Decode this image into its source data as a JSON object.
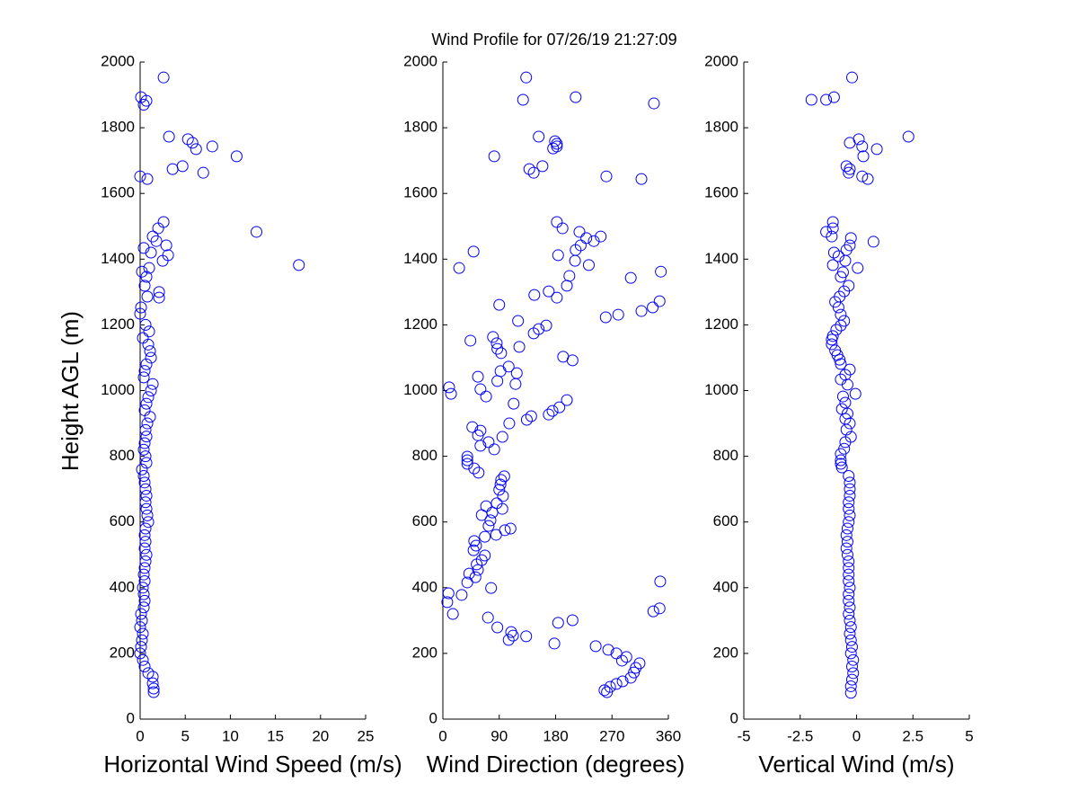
{
  "chart_data": [
    {
      "type": "scatter",
      "title": "Wind Profile for  07/26/19 21:27:09",
      "xlabel": "Horizontal Wind Speed (m/s)",
      "ylabel": "Height AGL (m)",
      "color": "#0000ff",
      "xlim": [
        0,
        25
      ],
      "xticks": [
        0,
        5,
        10,
        15,
        20,
        25
      ],
      "ylim": [
        0,
        2000
      ],
      "yticks": [
        0,
        200,
        400,
        600,
        800,
        1000,
        1200,
        1400,
        1600,
        1800,
        2000
      ],
      "x": [
        2.6,
        0.1,
        0.7,
        0.4,
        3.2,
        5.3,
        5.8,
        6.2,
        8.0,
        10.7,
        3.6,
        4.7,
        7.0,
        0,
        0.8,
        2.6,
        2.0,
        1.4,
        1.8,
        2.9,
        12.9,
        3.1,
        2.5,
        0.4,
        1.2,
        1.0,
        17.6,
        0.2,
        0.7,
        0.5,
        2.1,
        2.1,
        0.8,
        0.1,
        0.0,
        0.6,
        1.0,
        0.3,
        0.9,
        1.1,
        1.2,
        0.7,
        0.5,
        0.4,
        1.4,
        1.2,
        0.9,
        0.7,
        0.5,
        1.1,
        0.8,
        0.6,
        0.7,
        0.5,
        0.4,
        0.6,
        0.7,
        0.2,
        0.4,
        0.5,
        0.6,
        0.7,
        0.6,
        0.7,
        0.8,
        0.9,
        0.6,
        0.5,
        0.6,
        0.5,
        0.7,
        0.6,
        0.5,
        0.4,
        0.5,
        0.3,
        0.4,
        0.5,
        0.4,
        0.1,
        0.2,
        0.0,
        0.3,
        0.2,
        0.1,
        0.0,
        0.3,
        0.5,
        0.9,
        1.4,
        1.4,
        1.5,
        1.5
      ],
      "y": [
        1953,
        1893,
        1882,
        1870,
        1773,
        1765,
        1754,
        1735,
        1743,
        1713,
        1674,
        1683,
        1663,
        1652,
        1644,
        1513,
        1494,
        1469,
        1455,
        1442,
        1483,
        1412,
        1395,
        1434,
        1420,
        1373,
        1382,
        1362,
        1346,
        1319,
        1300,
        1283,
        1286,
        1253,
        1234,
        1200,
        1180,
        1160,
        1140,
        1120,
        1100,
        1080,
        1060,
        1040,
        1020,
        1000,
        980,
        960,
        940,
        920,
        900,
        880,
        860,
        840,
        820,
        800,
        780,
        760,
        740,
        720,
        700,
        680,
        660,
        640,
        620,
        600,
        580,
        560,
        540,
        520,
        500,
        480,
        460,
        440,
        420,
        400,
        380,
        360,
        340,
        320,
        300,
        280,
        260,
        240,
        220,
        200,
        180,
        160,
        140,
        129,
        109,
        93,
        82
      ]
    },
    {
      "type": "scatter",
      "xlabel": "Wind Direction (degrees)",
      "color": "#0000ff",
      "xlim": [
        0,
        360
      ],
      "xticks": [
        0,
        90,
        180,
        270,
        360
      ],
      "ylim": [
        0,
        2000
      ],
      "yticks": [
        0,
        200,
        400,
        600,
        800,
        1000,
        1200,
        1400,
        1600,
        1800,
        2000
      ],
      "x": [
        133,
        128,
        212,
        337,
        153,
        179,
        182,
        176,
        182,
        82,
        159,
        138,
        145,
        261,
        317,
        182,
        191,
        218,
        229,
        252,
        241,
        220,
        212,
        49,
        184,
        211,
        233,
        26,
        348,
        202,
        300,
        198,
        169,
        146,
        182,
        90,
        346,
        335,
        317,
        280,
        260,
        120,
        165,
        153,
        145,
        80,
        86,
        122,
        44,
        87,
        93,
        192,
        207,
        105,
        92,
        118,
        56,
        87,
        116,
        10,
        13,
        60,
        69,
        198,
        113,
        186,
        175,
        169,
        141,
        134,
        106,
        47,
        60,
        56,
        95,
        73,
        60,
        82,
        39,
        39,
        39,
        50,
        57,
        98,
        93,
        92,
        90,
        96,
        86,
        69,
        95,
        79,
        62,
        76,
        73,
        99,
        108,
        85,
        67,
        50,
        53,
        49,
        67,
        62,
        54,
        56,
        42,
        52,
        39,
        77,
        30,
        9,
        7,
        347,
        346,
        336,
        16,
        72,
        207,
        184,
        87,
        109,
        112,
        133,
        105,
        178,
        244,
        264,
        277,
        293,
        286,
        314,
        308,
        305,
        300,
        287,
        277,
        267,
        258,
        262
      ],
      "y": [
        1953,
        1885,
        1893,
        1874,
        1773,
        1759,
        1751,
        1737,
        1743,
        1713,
        1683,
        1674,
        1663,
        1652,
        1644,
        1513,
        1494,
        1483,
        1464,
        1469,
        1455,
        1442,
        1428,
        1423,
        1412,
        1395,
        1382,
        1373,
        1362,
        1349,
        1343,
        1319,
        1302,
        1291,
        1283,
        1261,
        1272,
        1253,
        1242,
        1231,
        1223,
        1212,
        1198,
        1187,
        1174,
        1163,
        1144,
        1133,
        1152,
        1127,
        1114,
        1103,
        1092,
        1073,
        1059,
        1053,
        1042,
        1029,
        1020,
        1010,
        990,
        1004,
        982,
        971,
        960,
        949,
        938,
        927,
        922,
        911,
        900,
        889,
        878,
        864,
        859,
        843,
        832,
        821,
        799,
        788,
        777,
        763,
        750,
        739,
        728,
        714,
        698,
        679,
        657,
        648,
        640,
        629,
        621,
        605,
        588,
        575,
        580,
        561,
        555,
        542,
        528,
        514,
        498,
        484,
        471,
        454,
        443,
        432,
        416,
        399,
        378,
        383,
        356,
        419,
        337,
        328,
        320,
        309,
        301,
        293,
        279,
        265,
        254,
        252,
        241,
        230,
        222,
        211,
        200,
        189,
        178,
        170,
        156,
        142,
        126,
        115,
        107,
        98,
        88,
        82
      ]
    },
    {
      "type": "scatter",
      "xlabel": "Vertical Wind (m/s)",
      "color": "#0000ff",
      "xlim": [
        -5,
        5
      ],
      "xticks": [
        -5,
        -2.5,
        0,
        2.5,
        5
      ],
      "ylim": [
        0,
        2000
      ],
      "yticks": [
        0,
        200,
        400,
        600,
        800,
        1000,
        1200,
        1400,
        1600,
        1800,
        2000
      ],
      "x": [
        -0.2,
        -2.0,
        -1.35,
        -1.0,
        2.3,
        0.1,
        -0.3,
        0.25,
        0.9,
        0.3,
        -0.45,
        -0.3,
        -0.35,
        0.25,
        0.5,
        -1.05,
        -1.05,
        -1.35,
        -1.1,
        -0.25,
        0.75,
        -0.3,
        -0.45,
        -1.0,
        -0.8,
        -0.5,
        -1.05,
        0.05,
        -0.6,
        -0.7,
        -0.35,
        -0.55,
        -0.75,
        -0.95,
        -0.8,
        -0.7,
        -0.55,
        -0.7,
        -0.9,
        -1.05,
        -1.1,
        -1.1,
        -0.95,
        -0.85,
        -0.75,
        -0.7,
        -0.3,
        -0.5,
        -0.7,
        -0.4,
        -0.05,
        -0.6,
        -0.5,
        -0.65,
        -0.4,
        -0.5,
        -0.3,
        -0.45,
        -0.25,
        -0.5,
        -0.55,
        -0.7,
        -0.7,
        -0.7,
        -0.65,
        -0.35,
        -0.3,
        -0.3,
        -0.3,
        -0.35,
        -0.35,
        -0.3,
        -0.35,
        -0.4,
        -0.45,
        -0.4,
        -0.45,
        -0.4,
        -0.35,
        -0.35,
        -0.35,
        -0.35,
        -0.3,
        -0.35,
        -0.35,
        -0.3,
        -0.35,
        -0.3,
        -0.25,
        -0.3,
        -0.25,
        -0.2,
        -0.25,
        -0.15,
        -0.2,
        -0.15,
        -0.2,
        -0.25,
        -0.25
      ],
      "y": [
        1953,
        1885,
        1885,
        1893,
        1773,
        1765,
        1754,
        1743,
        1735,
        1713,
        1683,
        1674,
        1663,
        1652,
        1644,
        1513,
        1494,
        1483,
        1469,
        1464,
        1453,
        1442,
        1428,
        1420,
        1409,
        1395,
        1382,
        1373,
        1360,
        1346,
        1319,
        1302,
        1286,
        1270,
        1253,
        1231,
        1212,
        1198,
        1185,
        1166,
        1155,
        1141,
        1122,
        1108,
        1094,
        1081,
        1064,
        1048,
        1034,
        1018,
        990,
        982,
        963,
        944,
        930,
        914,
        900,
        881,
        859,
        843,
        823,
        807,
        788,
        777,
        766,
        740,
        720,
        700,
        680,
        660,
        640,
        620,
        600,
        580,
        560,
        540,
        520,
        500,
        480,
        460,
        440,
        420,
        400,
        380,
        360,
        340,
        320,
        300,
        280,
        260,
        240,
        220,
        200,
        180,
        160,
        140,
        120,
        100,
        80
      ]
    }
  ]
}
